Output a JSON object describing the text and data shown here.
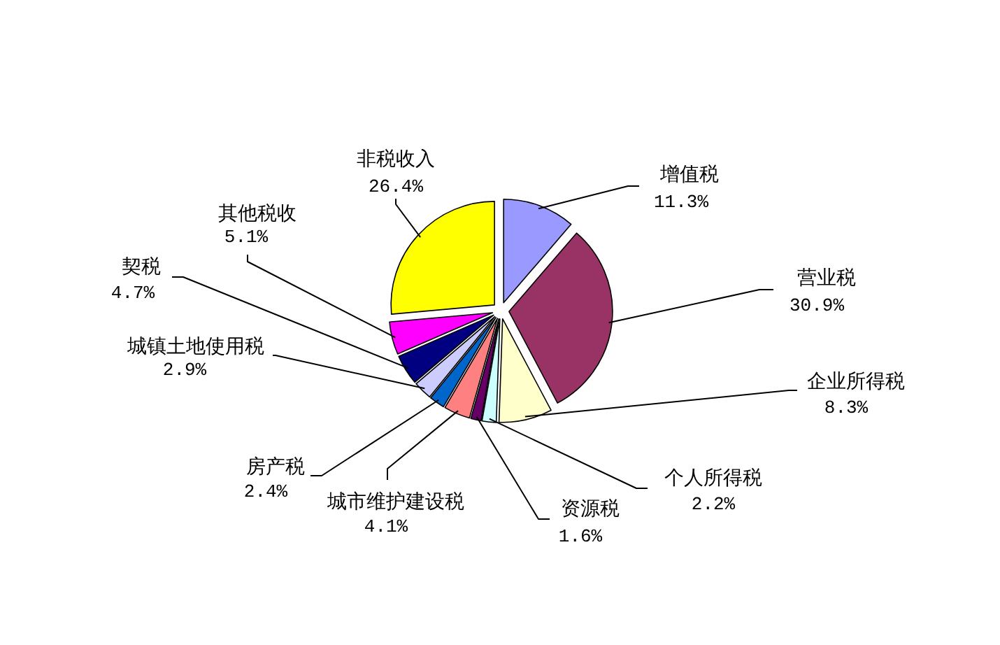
{
  "chart_data": {
    "type": "pie",
    "categories": [
      "增值税",
      "营业税",
      "企业所得税",
      "个人所得税",
      "资源税",
      "城市维护建设税",
      "房产税",
      "城镇土地使用税",
      "契税",
      "其他税收",
      "非税收入"
    ],
    "values": [
      11.3,
      30.9,
      8.3,
      2.2,
      1.6,
      4.1,
      2.4,
      2.9,
      4.7,
      5.1,
      26.4
    ],
    "value_labels": [
      "11.3%",
      "30.9%",
      "8.3%",
      "2.2%",
      "1.6%",
      "4.1%",
      "2.4%",
      "2.9%",
      "4.7%",
      "5.1%",
      "26.4%"
    ],
    "colors": [
      "#9999ff",
      "#993366",
      "#ffffcc",
      "#ccffff",
      "#660066",
      "#ff8080",
      "#0066cc",
      "#ccccff",
      "#000080",
      "#ff00ff",
      "#ffff00"
    ]
  }
}
